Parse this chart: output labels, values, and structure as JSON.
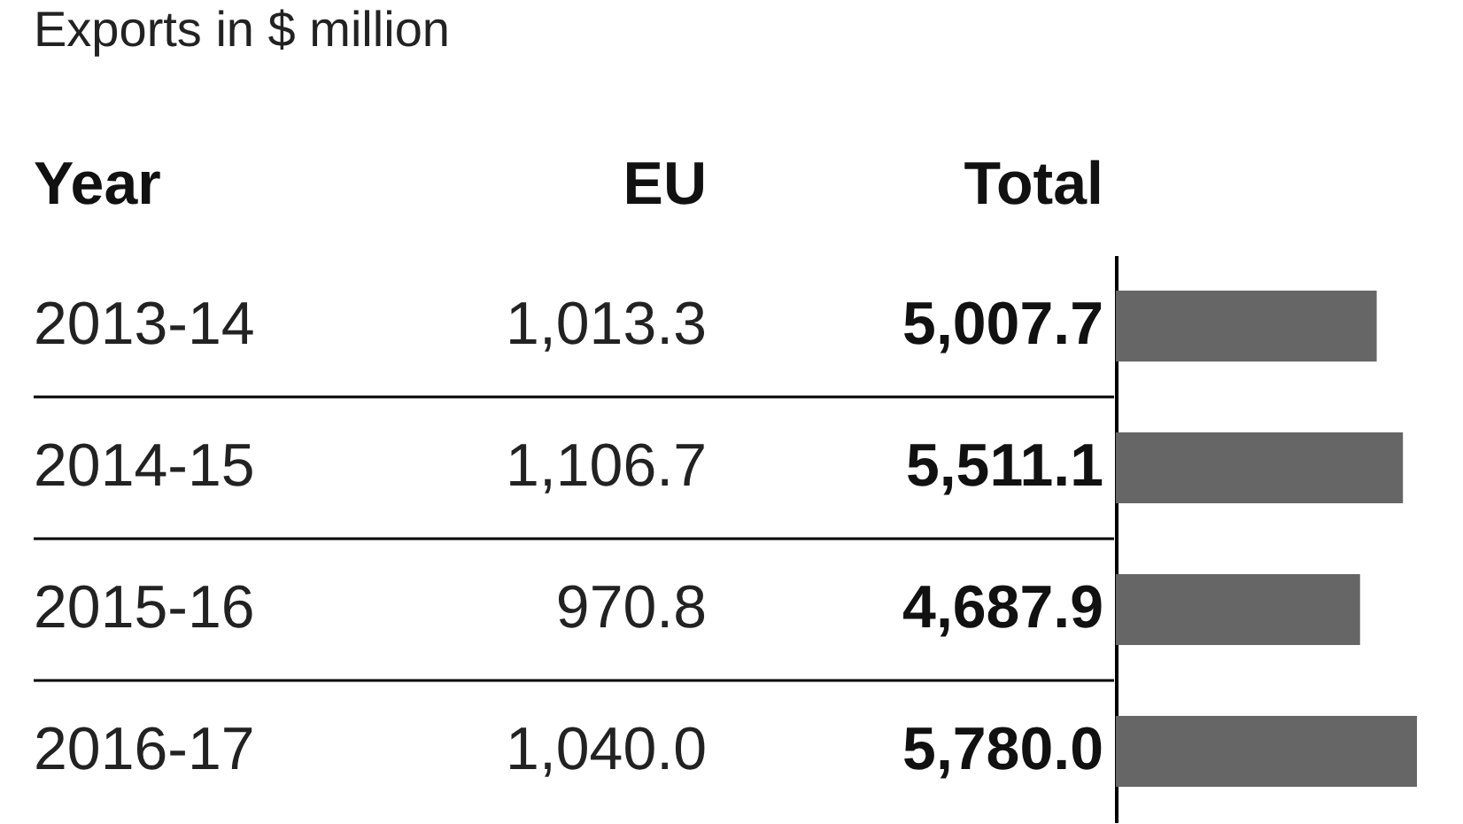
{
  "chart_data": {
    "type": "bar",
    "orientation": "horizontal",
    "title": "Exports in $ million",
    "ylabel": "Year",
    "categories": [
      "2013-14",
      "2014-15",
      "2015-16",
      "2016-17"
    ],
    "series": [
      {
        "name": "Total",
        "color": "#666666",
        "values": [
          5007.7,
          5511.1,
          4687.9,
          5780.0
        ],
        "value_labels": [
          "5,007.7",
          "5,511.1",
          "4,687.9",
          "5,780.0"
        ]
      }
    ],
    "annotations": [
      "EU",
      "1,013.3",
      "1,106.7",
      "970.8",
      "1,040.0"
    ]
  }
}
